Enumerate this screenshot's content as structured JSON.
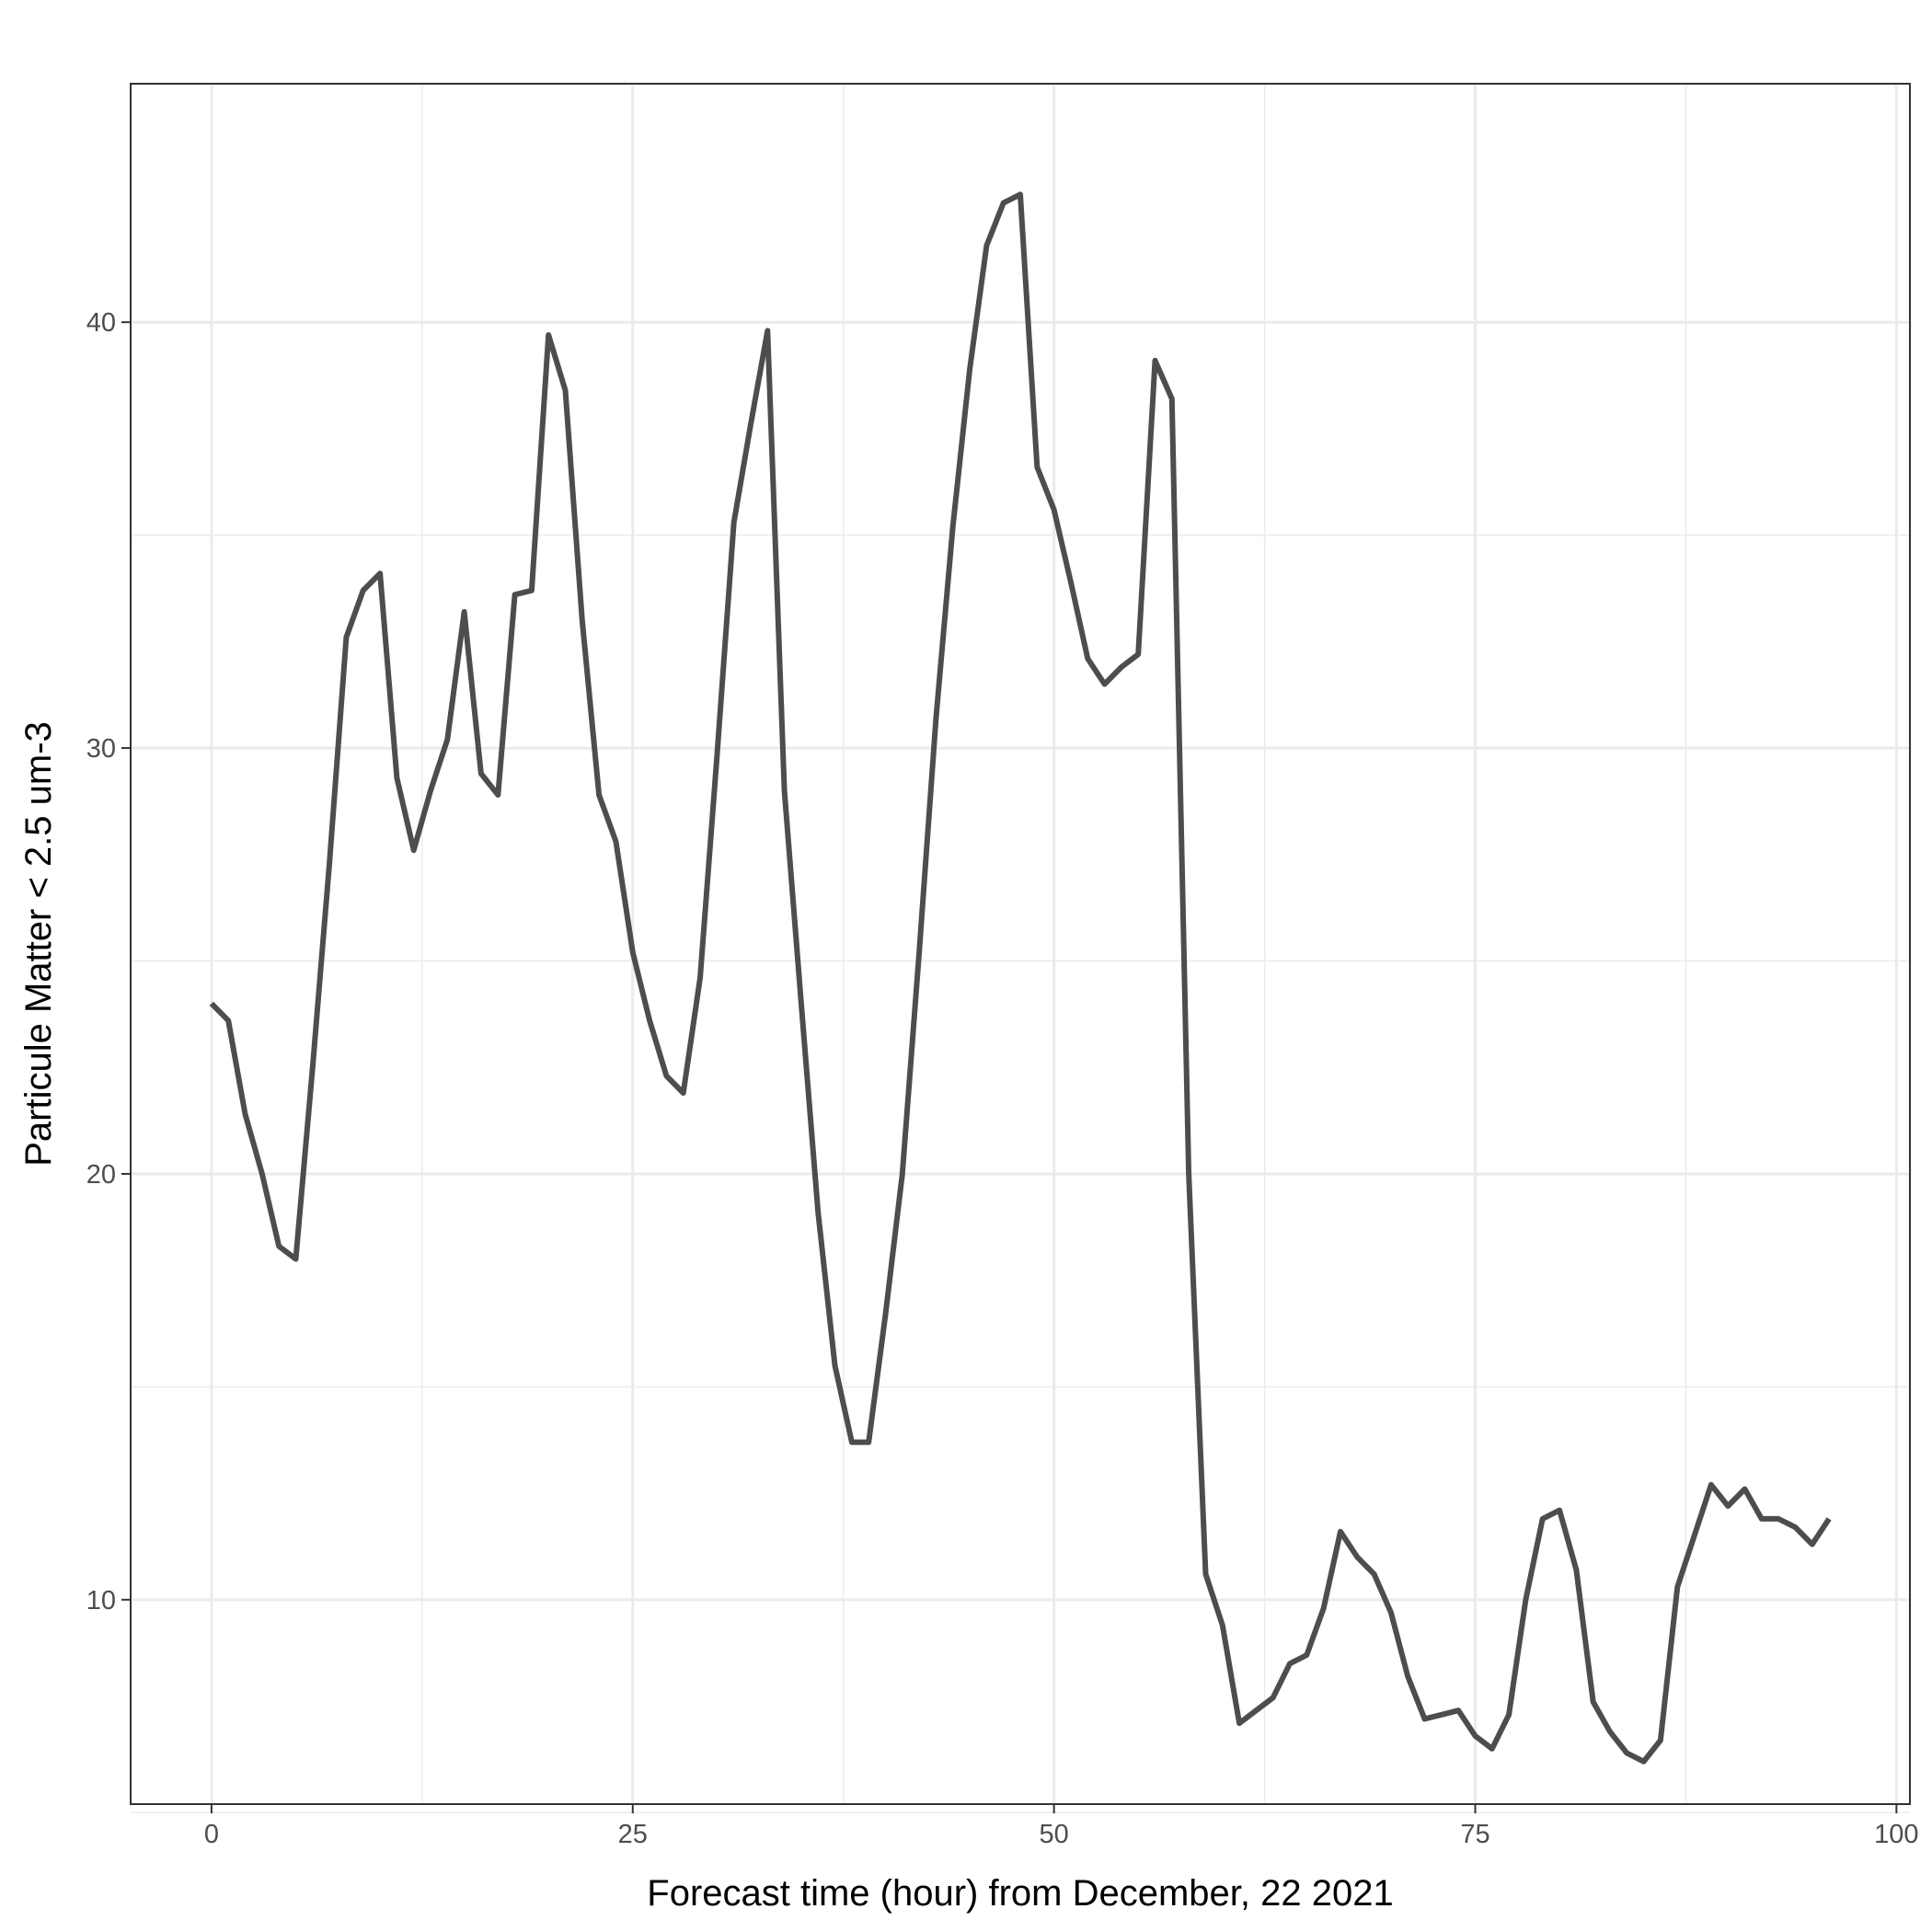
{
  "chart_data": {
    "type": "line",
    "title": "",
    "xlabel": "Forecast time (hour) from December, 22 2021",
    "ylabel": "Particule Matter < 2.5 um-3",
    "xlim": [
      -4.8,
      100.8
    ],
    "ylim": [
      5.2,
      45.6
    ],
    "x_ticks": [
      0,
      25,
      50,
      75,
      100
    ],
    "x_tick_labels": [
      "0",
      "25",
      "50",
      "75",
      "100"
    ],
    "y_ticks": [
      10,
      20,
      30,
      40
    ],
    "y_tick_labels": [
      "10",
      "20",
      "30",
      "40"
    ],
    "x_minor_ticks": [
      12.5,
      37.5,
      62.5,
      87.5
    ],
    "y_minor_ticks": [
      5,
      15,
      25,
      35
    ],
    "grid": true,
    "legend": "none",
    "line_color": "#4d4d4d",
    "series": [
      {
        "x": [
          0,
          1,
          2,
          3,
          4,
          5,
          6,
          7,
          8,
          9,
          10,
          11,
          12,
          13,
          14,
          15,
          16,
          17,
          18,
          19,
          20,
          21,
          22,
          23,
          24,
          25,
          26,
          27,
          28,
          29,
          30,
          31,
          32,
          33,
          34,
          35,
          36,
          37,
          38,
          39,
          40,
          41,
          42,
          43,
          44,
          45,
          46,
          47,
          48,
          49,
          50,
          51,
          52,
          53,
          54,
          55,
          56,
          57,
          58,
          59,
          60,
          61,
          62,
          63,
          64,
          65,
          66,
          67,
          68,
          69,
          70,
          71,
          72,
          73,
          74,
          75,
          76,
          77,
          78,
          79,
          80,
          81,
          82,
          83,
          84,
          85,
          86,
          87,
          88,
          89,
          90,
          91,
          92,
          93,
          94,
          95,
          96
        ],
        "values": [
          24.0,
          23.6,
          21.4,
          20.0,
          18.3,
          18.0,
          22.5,
          27.3,
          32.6,
          33.7,
          34.1,
          29.3,
          27.6,
          29.0,
          30.2,
          33.2,
          29.4,
          28.9,
          33.6,
          33.7,
          39.7,
          38.4,
          33.0,
          28.9,
          27.8,
          25.2,
          23.6,
          22.3,
          21.9,
          24.6,
          29.8,
          35.3,
          37.6,
          39.8,
          29.0,
          24.0,
          19.1,
          15.5,
          13.7,
          13.7,
          16.7,
          20.0,
          25.2,
          30.7,
          35.2,
          38.9,
          41.8,
          42.8,
          43.0,
          36.6,
          35.6,
          33.9,
          32.1,
          31.5,
          31.9,
          32.2,
          39.1,
          38.2,
          20.0,
          10.6,
          9.4,
          7.1,
          7.4,
          7.7,
          8.5,
          8.7,
          9.8,
          11.6,
          11.0,
          10.6,
          9.7,
          8.2,
          7.2,
          7.3,
          7.4,
          6.8,
          6.5,
          7.3,
          10.0,
          11.9,
          12.1,
          10.7,
          7.6,
          6.9,
          6.4,
          6.2,
          6.7,
          10.3,
          11.5,
          12.7,
          12.2,
          12.6,
          11.9,
          11.9,
          11.7,
          11.3,
          11.9
        ]
      }
    ]
  }
}
